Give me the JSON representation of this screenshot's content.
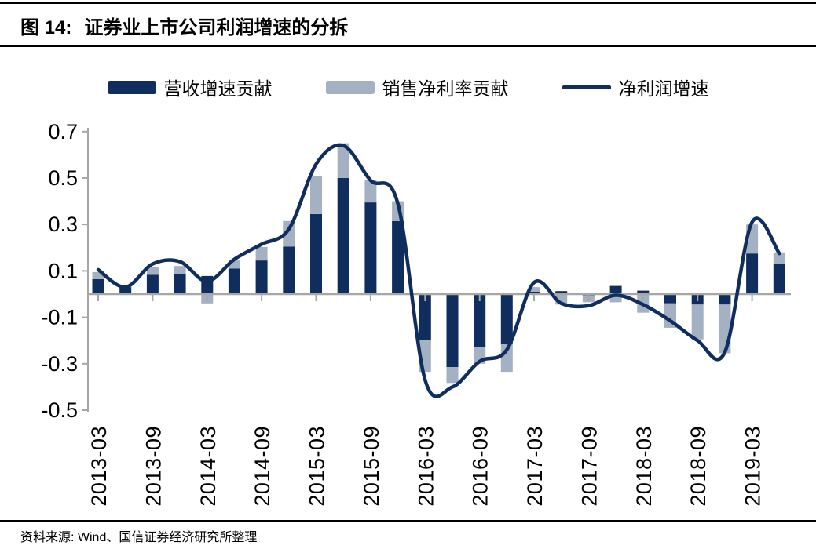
{
  "header": {
    "figure_label": "图 14:",
    "title": "证券业上市公司利润增速的分拆"
  },
  "footer": {
    "source": "资料来源: Wind、国信证券经济研究所整理"
  },
  "colors": {
    "navy": "#102e5d",
    "gray_blue": "#a3b1c2",
    "axis_gray": "#a6a6a6",
    "text_black": "#000000"
  },
  "chart_data": {
    "type": "combo",
    "subtype": "stacked-bar-with-smoothed-line",
    "title": "证券业上市公司利润增速的分拆",
    "xlabel": "",
    "ylabel": "",
    "ylim": [
      -0.5,
      0.7
    ],
    "yticks": [
      0.7,
      0.5,
      0.3,
      0.1,
      -0.1,
      -0.3,
      -0.5
    ],
    "ytick_labels": [
      "0.7",
      "0.5",
      "0.3",
      "0.1",
      "-0.1",
      "-0.3",
      "-0.5"
    ],
    "grid": false,
    "legend_position": "top",
    "categories": [
      "2013-03",
      "2013-06",
      "2013-09",
      "2013-12",
      "2014-03",
      "2014-06",
      "2014-09",
      "2014-12",
      "2015-03",
      "2015-06",
      "2015-09",
      "2015-12",
      "2016-03",
      "2016-06",
      "2016-09",
      "2016-12",
      "2017-03",
      "2017-06",
      "2017-09",
      "2017-12",
      "2018-03",
      "2018-06",
      "2018-09",
      "2018-12",
      "2019-03",
      "2019-06"
    ],
    "x_tick_labels": [
      "2013-03",
      "2013-09",
      "2014-03",
      "2014-09",
      "2015-03",
      "2015-09",
      "2016-03",
      "2016-09",
      "2017-03",
      "2017-09",
      "2018-03",
      "2018-09",
      "2019-03"
    ],
    "series": [
      {
        "name": "营收增速贡献",
        "type": "bar",
        "color": "#102e5d",
        "values": [
          0.065,
          0.03,
          0.083,
          0.088,
          0.078,
          0.11,
          0.145,
          0.205,
          0.345,
          0.5,
          0.395,
          0.315,
          -0.2,
          -0.315,
          -0.23,
          -0.215,
          0.01,
          0.013,
          -0.005,
          0.035,
          0.015,
          -0.04,
          -0.045,
          -0.045,
          0.175,
          0.13
        ]
      },
      {
        "name": "销售净利率贡献",
        "type": "bar",
        "color": "#a3b1c2",
        "values": [
          0.03,
          0.01,
          0.033,
          0.033,
          -0.04,
          0.035,
          0.058,
          0.11,
          0.165,
          0.15,
          0.095,
          0.085,
          -0.135,
          -0.068,
          -0.07,
          -0.12,
          0.02,
          -0.045,
          -0.03,
          -0.035,
          -0.08,
          -0.105,
          -0.15,
          -0.21,
          0.125,
          0.05
        ]
      },
      {
        "name": "净利润增速",
        "type": "line",
        "color": "#102e5d",
        "values": [
          0.105,
          0.03,
          0.13,
          0.14,
          0.055,
          0.15,
          0.215,
          0.28,
          0.56,
          0.64,
          0.49,
          0.39,
          -0.37,
          -0.4,
          -0.29,
          -0.24,
          0.05,
          -0.04,
          -0.05,
          -0.005,
          -0.045,
          -0.115,
          -0.2,
          -0.25,
          0.31,
          0.175
        ]
      }
    ]
  }
}
